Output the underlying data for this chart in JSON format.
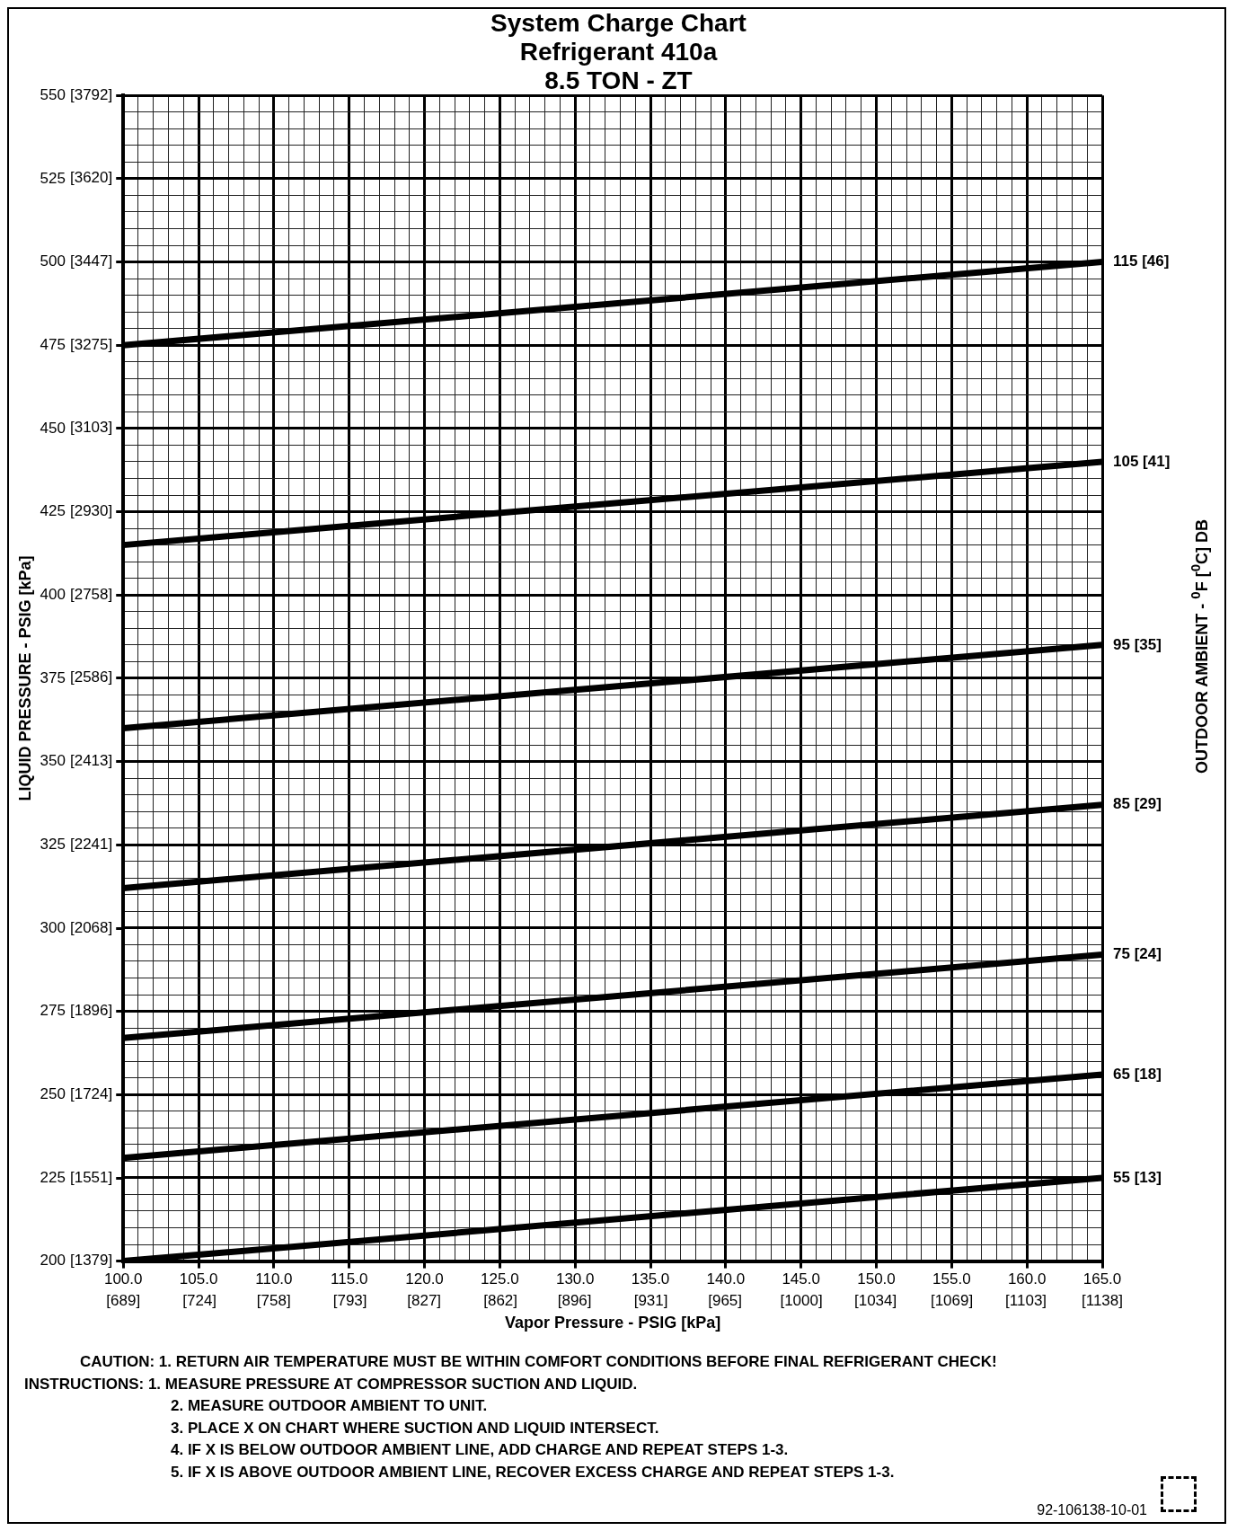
{
  "chart_data": {
    "type": "line",
    "title": "System Charge Chart\nRefrigerant 410a\n8.5 TON - ZT",
    "xlabel": "Vapor Pressure - PSIG [kPa]",
    "ylabel": "LIQUID PRESSURE - PSIG [kPa]",
    "legend_title": "OUTDOOR AMBIENT - $^{0}$F [$^{0}$C] DB",
    "x": [
      100,
      165
    ],
    "series": [
      {
        "name": "115 [46]",
        "color": "#000000",
        "values": [
          475,
          500
        ]
      },
      {
        "name": "105 [41]",
        "color": "#000000",
        "values": [
          415,
          440
        ]
      },
      {
        "name": "95 [35]",
        "color": "#000000",
        "values": [
          360,
          385
        ]
      },
      {
        "name": "85 [29]",
        "color": "#000000",
        "values": [
          312,
          337
        ]
      },
      {
        "name": "75 [24]",
        "color": "#000000",
        "values": [
          267,
          292
        ]
      },
      {
        "name": "65 [18]",
        "color": "#000000",
        "values": [
          231,
          256
        ]
      },
      {
        "name": "55 [13]",
        "color": "#000000",
        "values": [
          200,
          225
        ]
      }
    ],
    "xlim": [
      100,
      165
    ],
    "xticks": [
      {
        "value": 100,
        "label": "100.0"
      },
      {
        "value": 101,
        "label": null
      },
      {
        "value": 102,
        "label": null
      },
      {
        "value": 103,
        "label": null
      },
      {
        "value": 104,
        "label": null
      },
      {
        "value": 105,
        "label": "105.0"
      },
      {
        "value": 106,
        "label": null
      },
      {
        "value": 107,
        "label": null
      },
      {
        "value": 108,
        "label": null
      },
      {
        "value": 109,
        "label": null
      },
      {
        "value": 110,
        "label": "110.0"
      },
      {
        "value": 111,
        "label": null
      },
      {
        "value": 112,
        "label": null
      },
      {
        "value": 113,
        "label": null
      },
      {
        "value": 114,
        "label": null
      },
      {
        "value": 115,
        "label": "115.0"
      },
      {
        "value": 116,
        "label": null
      },
      {
        "value": 117,
        "label": null
      },
      {
        "value": 118,
        "label": null
      },
      {
        "value": 119,
        "label": null
      },
      {
        "value": 120,
        "label": "120.0"
      },
      {
        "value": 121,
        "label": null
      },
      {
        "value": 122,
        "label": null
      },
      {
        "value": 123,
        "label": null
      },
      {
        "value": 124,
        "label": null
      },
      {
        "value": 125,
        "label": "125.0"
      },
      {
        "value": 126,
        "label": null
      },
      {
        "value": 127,
        "label": null
      },
      {
        "value": 128,
        "label": null
      },
      {
        "value": 129,
        "label": null
      },
      {
        "value": 130,
        "label": "130.0"
      },
      {
        "value": 131,
        "label": null
      },
      {
        "value": 132,
        "label": null
      },
      {
        "value": 133,
        "label": null
      },
      {
        "value": 134,
        "label": null
      },
      {
        "value": 135,
        "label": "135.0"
      },
      {
        "value": 136,
        "label": null
      },
      {
        "value": 137,
        "label": null
      },
      {
        "value": 138,
        "label": null
      },
      {
        "value": 139,
        "label": null
      },
      {
        "value": 140,
        "label": "140.0"
      },
      {
        "value": 141,
        "label": null
      },
      {
        "value": 142,
        "label": null
      },
      {
        "value": 143,
        "label": null
      },
      {
        "value": 144,
        "label": null
      },
      {
        "value": 145,
        "label": "145.0"
      },
      {
        "value": 146,
        "label": null
      },
      {
        "value": 147,
        "label": null
      },
      {
        "value": 148,
        "label": null
      },
      {
        "value": 149,
        "label": null
      },
      {
        "value": 150,
        "label": "150.0"
      },
      {
        "value": 151,
        "label": null
      },
      {
        "value": 152,
        "label": null
      },
      {
        "value": 153,
        "label": null
      },
      {
        "value": 154,
        "label": null
      },
      {
        "value": 155,
        "label": "155.0"
      },
      {
        "value": 156,
        "label": null
      },
      {
        "value": 157,
        "label": null
      },
      {
        "value": 158,
        "label": null
      },
      {
        "value": 159,
        "label": null
      },
      {
        "value": 160,
        "label": "160.0"
      },
      {
        "value": 161,
        "label": null
      },
      {
        "value": 162,
        "label": null
      },
      {
        "value": 163,
        "label": null
      },
      {
        "value": 164,
        "label": null
      },
      {
        "value": 165,
        "label": "165.0"
      }
    ],
    "x2lim": [
      689,
      1138
    ],
    "x2ticks": [
      {
        "value": 689,
        "label": "[689]"
      },
      {
        "value": 724,
        "label": "[724]"
      },
      {
        "value": 758,
        "label": "[758]"
      },
      {
        "value": 793,
        "label": "[793]"
      },
      {
        "value": 827,
        "label": "[827]"
      },
      {
        "value": 862,
        "label": "[862]"
      },
      {
        "value": 896,
        "label": "[896]"
      },
      {
        "value": 931,
        "label": "[931]"
      },
      {
        "value": 965,
        "label": "[965]"
      },
      {
        "value": 1000,
        "label": "[1000]"
      },
      {
        "value": 1034,
        "label": "[1034]"
      },
      {
        "value": 1069,
        "label": "[1069]"
      },
      {
        "value": 1103,
        "label": "[1103]"
      },
      {
        "value": 1138,
        "label": "[1138]"
      }
    ],
    "ylim": [
      200,
      550
    ],
    "yticks": [
      200,
      {
        "value": 205,
        "label": null
      },
      {
        "value": 210,
        "label": null
      },
      {
        "value": 215,
        "label": null
      },
      {
        "value": 220,
        "label": null
      },
      225,
      {
        "value": 230,
        "label": null
      },
      {
        "value": 235,
        "label": null
      },
      {
        "value": 240,
        "label": null
      },
      {
        "value": 245,
        "label": null
      },
      250,
      {
        "value": 255,
        "label": null
      },
      {
        "value": 260,
        "label": null
      },
      {
        "value": 265,
        "label": null
      },
      {
        "value": 270,
        "label": null
      },
      275,
      {
        "value": 280,
        "label": null
      },
      {
        "value": 285,
        "label": null
      },
      {
        "value": 290,
        "label": null
      },
      {
        "value": 295,
        "label": null
      },
      300,
      {
        "value": 305,
        "label": null
      },
      {
        "value": 310,
        "label": null
      },
      {
        "value": 315,
        "label": null
      },
      {
        "value": 320,
        "label": null
      },
      325,
      {
        "value": 330,
        "label": null
      },
      {
        "value": 335,
        "label": null
      },
      {
        "value": 340,
        "label": null
      },
      {
        "value": 345,
        "label": null
      },
      350,
      {
        "value": 355,
        "label": null
      },
      {
        "value": 360,
        "label": null
      },
      {
        "value": 365,
        "label": null
      },
      {
        "value": 370,
        "label": null
      },
      375,
      {
        "value": 380,
        "label": null
      },
      {
        "value": 385,
        "label": null
      },
      {
        "value": 390,
        "label": null
      },
      {
        "value": 395,
        "label": null
      },
      400,
      {
        "value": 405,
        "label": null
      },
      {
        "value": 410,
        "label": null
      },
      {
        "value": 415,
        "label": null
      },
      {
        "value": 420,
        "label": null
      },
      425,
      {
        "value": 430,
        "label": null
      },
      {
        "value": 435,
        "label": null
      },
      {
        "value": 440,
        "label": null
      },
      {
        "value": 445,
        "label": null
      },
      450,
      {
        "value": 455,
        "label": null
      },
      {
        "value": 460,
        "label": null
      },
      {
        "value": 465,
        "label": null
      },
      {
        "value": 470,
        "label": null
      },
      475,
      {
        "value": 480,
        "label": null
      },
      {
        "value": 485,
        "label": null
      },
      {
        "value": 490,
        "label": null
      },
      {
        "value": 495,
        "label": null
      },
      500,
      {
        "value": 505,
        "label": null
      },
      {
        "value": 510,
        "label": null
      },
      {
        "value": 515,
        "label": null
      },
      {
        "value": 520,
        "label": null
      },
      525,
      {
        "value": 530,
        "label": null
      },
      {
        "value": 535,
        "label": null
      },
      {
        "value": 540,
        "label": null
      },
      {
        "value": 545,
        "label": null
      },
      550
    ],
    "y2lim": [
      1379,
      3792
    ],
    "y2ticks": [
      {
        "value": 1379,
        "label": "[1379]"
      },
      {
        "value": 1551,
        "label": "[1551]"
      },
      {
        "value": 1724,
        "label": "[1724]"
      },
      {
        "value": 1896,
        "label": "[1896]"
      },
      {
        "value": 2068,
        "label": "[2068]"
      },
      {
        "value": 2241,
        "label": "[2241]"
      },
      {
        "value": 2413,
        "label": "[2413]"
      },
      {
        "value": 2586,
        "label": "[2586]"
      },
      {
        "value": 2758,
        "label": "[2758]"
      },
      {
        "value": 2930,
        "label": "[2930]"
      },
      {
        "value": 3103,
        "label": "[3103]"
      },
      {
        "value": 3275,
        "label": "[3275]"
      },
      {
        "value": 3447,
        "label": "[3447]"
      },
      {
        "value": 3620,
        "label": "[3620]"
      },
      {
        "value": 3792,
        "label": "[3792]"
      }
    ],
    "grid": true,
    "legend": false,
    "marker": "none",
    "line_style": "solid",
    "annotations": [
      "CAUTION: 1. RETURN AIR TEMPERATURE MUST BE WITHIN COMFORT CONDITIONS BEFORE FINAL REFRIGERANT CHECK!",
      "INSTRUCTIONS: 1. MEASURE PRESSURE AT COMPRESSOR SUCTION AND LIQUID.",
      "2. MEASURE OUTDOOR AMBIENT TO UNIT.",
      "3. PLACE X ON CHART WHERE SUCTION AND LIQUID INTERSECT.",
      "4. IF X IS BELOW OUTDOOR AMBIENT LINE, ADD CHARGE AND REPEAT STEPS 1-3.",
      "5. IF X IS ABOVE OUTDOOR AMBIENT LINE, RECOVER EXCESS CHARGE AND REPEAT STEPS 1-3.",
      "92-106138-10-01"
    ]
  }
}
